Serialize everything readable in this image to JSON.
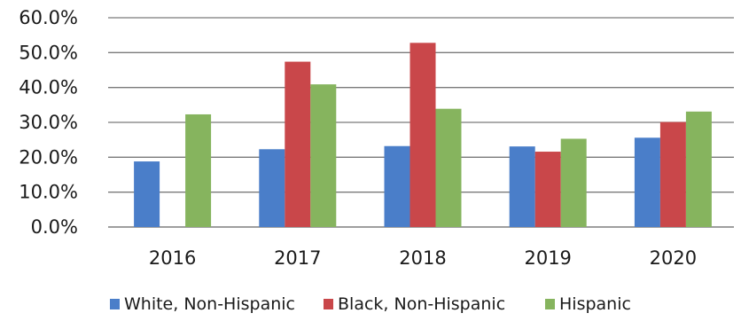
{
  "chart_data": {
    "type": "bar",
    "title": "",
    "xlabel": "",
    "ylabel": "",
    "categories": [
      "2016",
      "2017",
      "2018",
      "2019",
      "2020"
    ],
    "ylim": [
      0,
      60
    ],
    "yticks": [
      0,
      10,
      20,
      30,
      40,
      50,
      60
    ],
    "ytick_labels": [
      "0.0%",
      "10.0%",
      "20.0%",
      "30.0%",
      "40.0%",
      "50.0%",
      "60.0%"
    ],
    "grid": true,
    "legend_position": "bottom",
    "series": [
      {
        "name": "White, Non-Hispanic",
        "color": "#4a7ec9",
        "values": [
          18.8,
          22.3,
          23.2,
          23.1,
          25.6
        ]
      },
      {
        "name": "Black, Non-Hispanic",
        "color": "#c9474a",
        "values": [
          null,
          47.4,
          52.8,
          21.6,
          30.1
        ]
      },
      {
        "name": "Hispanic",
        "color": "#86b45e",
        "values": [
          32.3,
          40.9,
          33.9,
          25.3,
          33.1
        ]
      }
    ]
  }
}
